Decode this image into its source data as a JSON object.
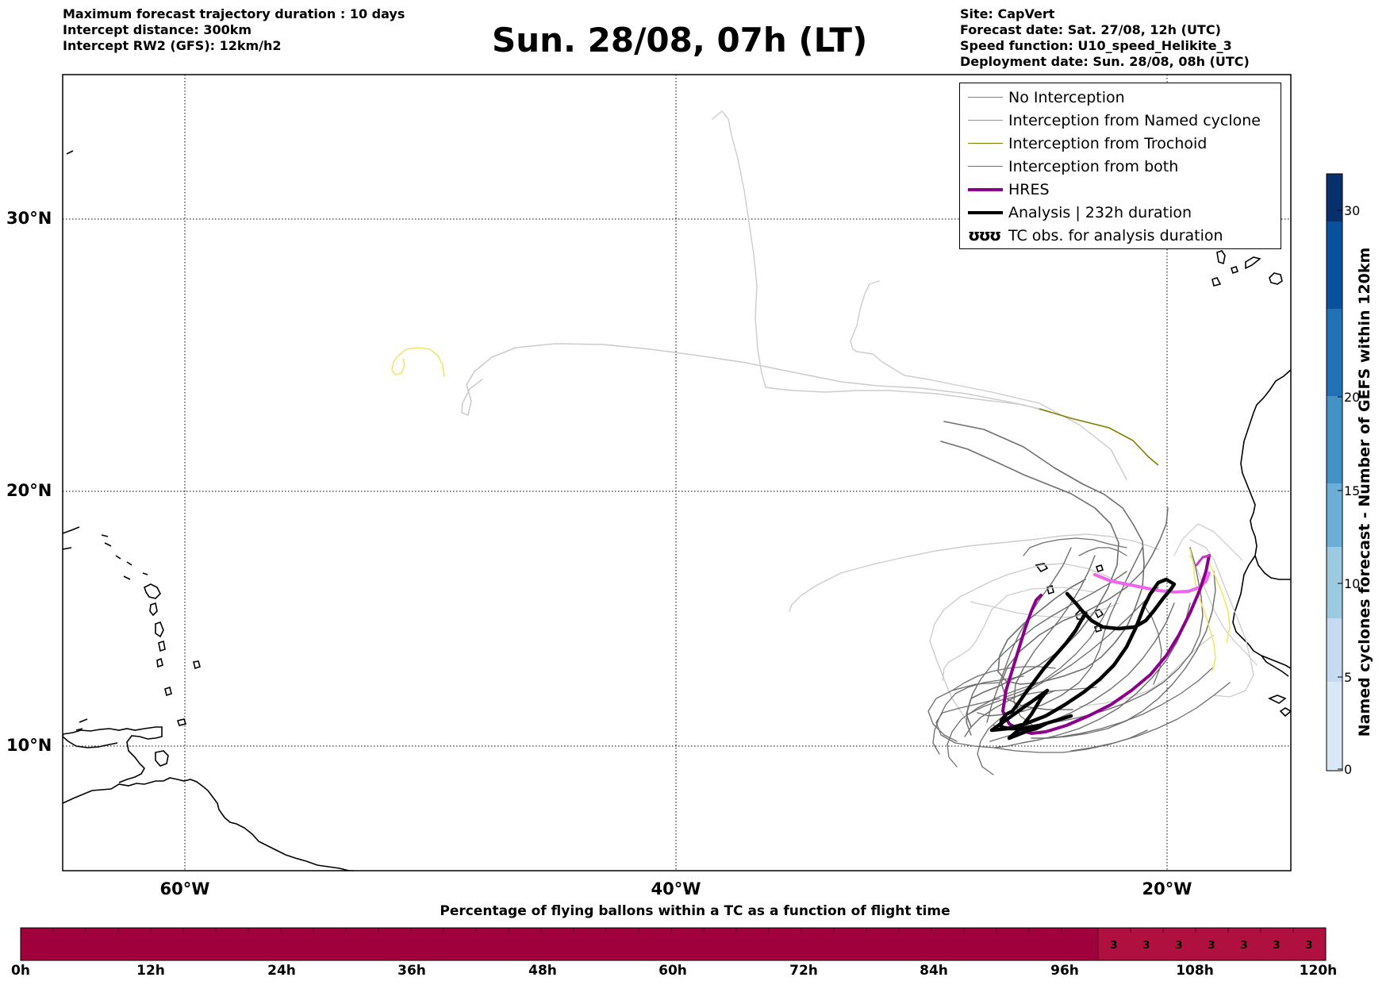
{
  "header_left": [
    "Maximum forecast trajectory duration : 10 days",
    "Intercept distance: 300km",
    "Intercept RW2 (GFS):  12km/h2"
  ],
  "title": "Sun. 28/08, 07h (LT)",
  "header_right": [
    "Site: CapVert",
    "Forecast date: Sat. 27/08, 12h (UTC)",
    "Speed function: U10_speed_Helikite_3",
    "Deployment date: Sun. 28/08, 08h (UTC)"
  ],
  "legend": [
    {
      "label": "No Interception",
      "color": "#808080",
      "style": "thin"
    },
    {
      "label": "Interception from Named cyclone",
      "color": "#ff7043",
      "style": "thin"
    },
    {
      "label": "Interception from Trochoid",
      "color": "#808000",
      "style": "thin"
    },
    {
      "label": "Interception from both",
      "color": "#2ca02c",
      "style": "thin"
    },
    {
      "label": "HRES",
      "color": "#8b008b",
      "style": "thick"
    },
    {
      "label": "Analysis | 232h duration",
      "color": "#000000",
      "style": "thick"
    },
    {
      "label": "TC obs. for analysis duration",
      "color": "#000000",
      "style": "symbol",
      "symbol": "ʊʊʊ"
    }
  ],
  "map": {
    "lon_range": [
      -65,
      -15
    ],
    "lat_range": [
      5.5,
      35
    ],
    "lon_ticks": [
      "60°W",
      "40°W",
      "20°W"
    ],
    "lat_ticks": [
      "30°N",
      "20°N",
      "10°N"
    ],
    "grid": "dotted"
  },
  "colorbar": {
    "title": "Named cyclones forecast - Number of GEFS within 120km",
    "range": [
      0,
      32
    ],
    "ticks": [
      "0",
      "5",
      "10",
      "15",
      "20",
      "30"
    ],
    "colors": [
      "#dae8f5",
      "#c6dbef",
      "#9ecae1",
      "#6baed6",
      "#4292c6",
      "#2171b5",
      "#08519c",
      "#08306b"
    ]
  },
  "bottom_bar": {
    "title": "Percentage of flying ballons within a TC as a function of flight time",
    "ticks": [
      "0h",
      "12h",
      "24h",
      "36h",
      "48h",
      "60h",
      "72h",
      "84h",
      "96h",
      "108h",
      "120h"
    ],
    "cell_labels": [
      "3",
      "3",
      "3",
      "3",
      "3",
      "3",
      "3"
    ],
    "base_color": "#a0003c",
    "highlight_color": "#b0103f"
  }
}
